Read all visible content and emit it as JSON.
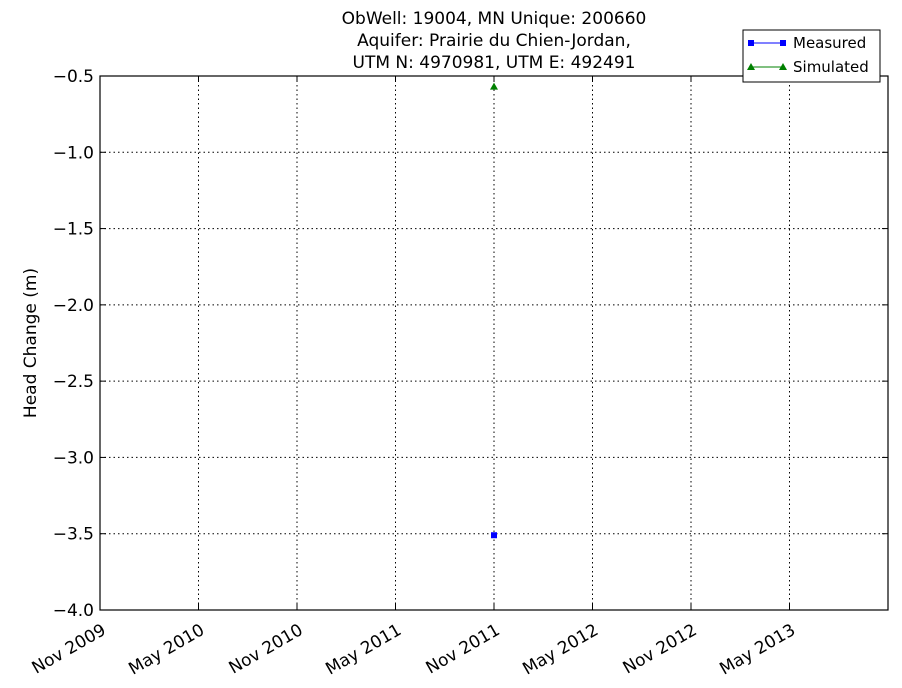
{
  "chart_data": {
    "type": "line",
    "title": [
      "ObWell: 19004, MN Unique: 200660",
      "Aquifer: Prairie du Chien-Jordan,",
      "UTM N: 4970981, UTM E: 492491"
    ],
    "y_label": "Head Change (m)",
    "xlim": [
      "2009-11",
      "2013-11"
    ],
    "xticks": [
      {
        "value": "2009-11",
        "label": "Nov 2009"
      },
      {
        "value": "2010-05",
        "label": "May 2010"
      },
      {
        "value": "2010-11",
        "label": "Nov 2010"
      },
      {
        "value": "2011-05",
        "label": "May 2011"
      },
      {
        "value": "2011-11",
        "label": "Nov 2011"
      },
      {
        "value": "2012-05",
        "label": "May 2012"
      },
      {
        "value": "2012-11",
        "label": "Nov 2012"
      },
      {
        "value": "2013-05",
        "label": "May 2013"
      }
    ],
    "ylim": [
      -4.0,
      -0.5
    ],
    "yticks": [
      {
        "value": -4.0,
        "label": "−4.0"
      },
      {
        "value": -3.5,
        "label": "−3.5"
      },
      {
        "value": -3.0,
        "label": "−3.0"
      },
      {
        "value": -2.5,
        "label": "−2.5"
      },
      {
        "value": -2.0,
        "label": "−2.0"
      },
      {
        "value": -1.5,
        "label": "−1.5"
      },
      {
        "value": -1.0,
        "label": "−1.0"
      },
      {
        "value": -0.5,
        "label": "−0.5"
      }
    ],
    "grid": true,
    "legend": "upper right",
    "series": [
      {
        "name": "Measured",
        "color": "#0000ff",
        "marker": "square",
        "x": [
          "2011-11"
        ],
        "values": [
          -3.51
        ]
      },
      {
        "name": "Simulated",
        "color": "#008000",
        "marker": "triangle",
        "x": [
          "2011-11"
        ],
        "values": [
          -0.57
        ]
      }
    ]
  }
}
